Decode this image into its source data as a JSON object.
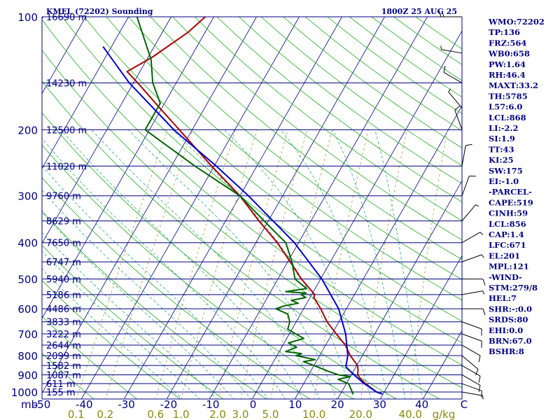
{
  "header": {
    "station": "KMFL (72202) Sounding",
    "time": "1800Z 25 AUG 25"
  },
  "colors": {
    "frame": "#000080",
    "isotherm": "#000080",
    "dry_adiabat": "#22aa22",
    "moist_adiabat": "#2aaa88",
    "mixing_ratio": "#9a9a30",
    "temperature": "#aa0000",
    "dewpoint": "#006600",
    "parcel": "#0000cc",
    "wind": "#000000"
  },
  "chart_data": {
    "type": "line",
    "title": "KMFL (72202) Sounding",
    "subtitle": "1800Z 25 AUG 25",
    "xlabel": "",
    "ylabel": "mb",
    "plim": [
      100,
      1050
    ],
    "xlim": [
      -50,
      50
    ],
    "y_scale": "log-pressure",
    "x_ticks": [
      "-50",
      "-40",
      "-30",
      "-20",
      "-10",
      "0",
      "10",
      "20",
      "30",
      "40",
      "C"
    ],
    "x_tick_values": [
      -50,
      -40,
      -30,
      -20,
      -10,
      0,
      10,
      20,
      30,
      40,
      50
    ],
    "pressure_labels": [
      {
        "p": 100,
        "label": "100"
      },
      {
        "p": 200,
        "label": "200"
      },
      {
        "p": 300,
        "label": "300"
      },
      {
        "p": 400,
        "label": "400"
      },
      {
        "p": 500,
        "label": "500"
      },
      {
        "p": 600,
        "label": "600"
      },
      {
        "p": 700,
        "label": "700"
      },
      {
        "p": 800,
        "label": "800"
      },
      {
        "p": 900,
        "label": "900"
      },
      {
        "p": 1000,
        "label": "1000"
      }
    ],
    "pressure_axis_unit": "mb",
    "height_labels": [
      {
        "p": 100,
        "label": "16690 m"
      },
      {
        "p": 150,
        "label": "14230 m"
      },
      {
        "p": 200,
        "label": "12500 m"
      },
      {
        "p": 250,
        "label": "11020 m"
      },
      {
        "p": 300,
        "label": "9760 m"
      },
      {
        "p": 350,
        "label": "8629 m"
      },
      {
        "p": 400,
        "label": "7650 m"
      },
      {
        "p": 450,
        "label": "6747 m"
      },
      {
        "p": 500,
        "label": "5940 m"
      },
      {
        "p": 550,
        "label": "5186 m"
      },
      {
        "p": 600,
        "label": "4486 m"
      },
      {
        "p": 650,
        "label": "3833 m"
      },
      {
        "p": 700,
        "label": "3222 m"
      },
      {
        "p": 750,
        "label": "2644 m"
      },
      {
        "p": 800,
        "label": "2099 m"
      },
      {
        "p": 850,
        "label": "1582 m"
      },
      {
        "p": 900,
        "label": "1087 m"
      },
      {
        "p": 950,
        "label": "611 m"
      },
      {
        "p": 1000,
        "label": "155 m"
      }
    ],
    "mixing_ratio_labels": [
      "0.1",
      "0.2",
      "0.6",
      "1.0",
      "2.0",
      "3.0",
      "5.0",
      "10.0",
      "20.0",
      "40.0"
    ],
    "mixing_ratio_values": [
      0.1,
      0.2,
      0.6,
      1.0,
      2.0,
      3.0,
      5.0,
      10.0,
      20.0,
      40.0
    ],
    "mixing_ratio_unit": "g/kg",
    "series": [
      {
        "name": "",
        "key": "temperature",
        "points": [
          [
            1012,
            29.8
          ],
          [
            1000,
            28.2
          ],
          [
            950,
            24.5
          ],
          [
            925,
            22.8
          ],
          [
            900,
            21.5
          ],
          [
            870,
            20.8
          ],
          [
            850,
            20.2
          ],
          [
            800,
            17.2
          ],
          [
            750,
            14.6
          ],
          [
            700,
            11.0
          ],
          [
            650,
            7.2
          ],
          [
            600,
            4.0
          ],
          [
            560,
            0.9
          ],
          [
            550,
            0.7
          ],
          [
            500,
            -4.5
          ],
          [
            450,
            -9.4
          ],
          [
            400,
            -15.0
          ],
          [
            350,
            -22.2
          ],
          [
            300,
            -30.0
          ],
          [
            250,
            -40.6
          ],
          [
            200,
            -53.0
          ],
          [
            175,
            -60.5
          ],
          [
            150,
            -69.0
          ],
          [
            140,
            -73.0
          ],
          [
            128,
            -69.0
          ],
          [
            110,
            -64.0
          ],
          [
            100,
            -62.0
          ]
        ]
      },
      {
        "name": "",
        "key": "dewpoint",
        "points": [
          [
            1012,
            23.0
          ],
          [
            1000,
            22.5
          ],
          [
            950,
            20.5
          ],
          [
            925,
            17.5
          ],
          [
            910,
            20.0
          ],
          [
            900,
            17.0
          ],
          [
            880,
            14.0
          ],
          [
            850,
            10.0
          ],
          [
            830,
            7.0
          ],
          [
            820,
            9.5
          ],
          [
            800,
            4.5
          ],
          [
            790,
            5.5
          ],
          [
            780,
            1.5
          ],
          [
            760,
            3.5
          ],
          [
            740,
            1.0
          ],
          [
            720,
            4.0
          ],
          [
            700,
            1.5
          ],
          [
            680,
            -1.0
          ],
          [
            650,
            -1.5
          ],
          [
            620,
            -3.0
          ],
          [
            600,
            -6.5
          ],
          [
            590,
            -5.0
          ],
          [
            580,
            -2.0
          ],
          [
            570,
            -4.0
          ],
          [
            560,
            -1.0
          ],
          [
            550,
            -2.5
          ],
          [
            545,
            -1.5
          ],
          [
            540,
            -6.5
          ],
          [
            530,
            -2.0
          ],
          [
            500,
            -6.0
          ],
          [
            450,
            -9.0
          ],
          [
            400,
            -13.0
          ],
          [
            350,
            -21.0
          ],
          [
            300,
            -30.0
          ],
          [
            250,
            -44.5
          ],
          [
            200,
            -61.0
          ],
          [
            170,
            -61.0
          ],
          [
            150,
            -65.5
          ],
          [
            130,
            -69.0
          ],
          [
            100,
            -78.0
          ]
        ]
      },
      {
        "name": "",
        "key": "parcel",
        "points": [
          [
            1012,
            29.8
          ],
          [
            1000,
            28.2
          ],
          [
            950,
            24.2
          ],
          [
            900,
            20.6
          ],
          [
            856,
            17.6
          ],
          [
            800,
            16.6
          ],
          [
            700,
            13.2
          ],
          [
            600,
            8.2
          ],
          [
            500,
            0.3
          ],
          [
            400,
            -11.0
          ],
          [
            300,
            -28.0
          ],
          [
            250,
            -39.5
          ],
          [
            201,
            -54.0
          ],
          [
            150,
            -71.0
          ],
          [
            120,
            -82.0
          ]
        ]
      }
    ],
    "wind_barbs": [
      {
        "p": 1000,
        "dir": 100,
        "spd": 5
      },
      {
        "p": 950,
        "dir": 110,
        "spd": 10
      },
      {
        "p": 900,
        "dir": 120,
        "spd": 10
      },
      {
        "p": 850,
        "dir": 120,
        "spd": 10
      },
      {
        "p": 800,
        "dir": 130,
        "spd": 10
      },
      {
        "p": 750,
        "dir": 120,
        "spd": 10
      },
      {
        "p": 700,
        "dir": 110,
        "spd": 10
      },
      {
        "p": 650,
        "dir": 110,
        "spd": 10
      },
      {
        "p": 600,
        "dir": 90,
        "spd": 10
      },
      {
        "p": 550,
        "dir": 80,
        "spd": 5
      },
      {
        "p": 500,
        "dir": 90,
        "spd": 10
      },
      {
        "p": 450,
        "dir": 70,
        "spd": 5
      },
      {
        "p": 400,
        "dir": 60,
        "spd": 5
      },
      {
        "p": 350,
        "dir": 40,
        "spd": 5
      },
      {
        "p": 300,
        "dir": 20,
        "spd": 10
      },
      {
        "p": 250,
        "dir": 10,
        "spd": 10
      },
      {
        "p": 200,
        "dir": 340,
        "spd": 10
      },
      {
        "p": 175,
        "dir": 320,
        "spd": 5
      },
      {
        "p": 150,
        "dir": 300,
        "spd": 10
      },
      {
        "p": 125,
        "dir": 280,
        "spd": 5
      },
      {
        "p": 100,
        "dir": 270,
        "spd": 15
      }
    ]
  },
  "indices": [
    "WMO:72202",
    "TP:136",
    "FRZ:564",
    "WB0:658",
    "PW:1.64",
    "RH:46.4",
    "MAXT:33.2",
    "TH:5785",
    "L57:6.0",
    "LCL:868",
    "LI:-2.2",
    "SI:1.9",
    "TT:43",
    "KI:25",
    "SW:175",
    "EI:-1.0",
    "-PARCEL-",
    "CAPE:519",
    "CINH:59",
    "LCL:856",
    "CAP:1.4",
    "LFC:671",
    "EL:201",
    "MPL:121",
    "-WIND-",
    "STM:279/8",
    "HEL:7",
    "SHR:-:0.0",
    "SRDS:80",
    "EHI:0.0",
    "BRN:67.0",
    "BSHR:8"
  ]
}
